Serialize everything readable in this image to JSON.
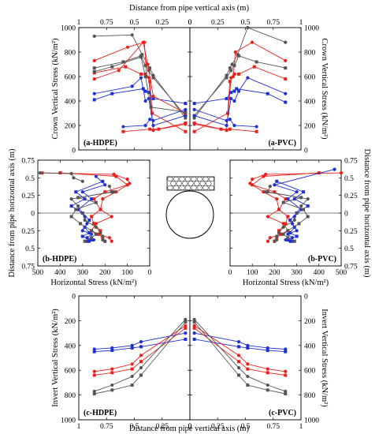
{
  "figure": {
    "top_xlabel": "Distance from pipe vertical axis (m)",
    "bottom_xlabel": "Distance from pipe vertical axis (m)",
    "left_ylabel": "Distance from pipe horizontal axis (m)",
    "right_ylabel": "Distance from pipe horizontal axis (m)"
  },
  "colors": {
    "gray": "#555555",
    "red": "#e8211c",
    "blue": "#1f2fd6"
  },
  "chart_data": [
    {
      "id": "crown-hdpe",
      "type": "line",
      "panel_label": "(a-HDPE)",
      "ylabel": "Crown Vertical Stress (kN/m²)",
      "x_reversed": true,
      "xlim": [
        0,
        1
      ],
      "ylim": [
        0,
        1000
      ],
      "x_ticks": [
        "1",
        "0.75",
        "0.5",
        "0.25",
        "0"
      ],
      "y_ticks": [
        "0",
        "200",
        "400",
        "600",
        "800",
        "1000"
      ],
      "series": [
        {
          "color": "gray",
          "x": [
            0.86,
            0.52,
            0.43,
            0.38,
            0.36,
            0.33,
            0.04
          ],
          "y": [
            930,
            940,
            780,
            700,
            670,
            610,
            260
          ]
        },
        {
          "color": "gray",
          "x": [
            0.86,
            0.6,
            0.44,
            0.4,
            0.37,
            0.33,
            0.04
          ],
          "y": [
            670,
            720,
            770,
            690,
            650,
            590,
            280
          ]
        },
        {
          "color": "red",
          "x": [
            0.86,
            0.56,
            0.41,
            0.39,
            0.37,
            0.33,
            0.04
          ],
          "y": [
            730,
            840,
            880,
            600,
            590,
            160,
            210
          ]
        },
        {
          "color": "red",
          "x": [
            0.86,
            0.58,
            0.44,
            0.4,
            0.36,
            0.34,
            0.04
          ],
          "y": [
            630,
            680,
            620,
            620,
            560,
            300,
            150
          ]
        },
        {
          "color": "blue",
          "x": [
            0.86,
            0.52,
            0.44,
            0.4,
            0.37,
            0.33,
            0.04
          ],
          "y": [
            460,
            520,
            590,
            400,
            420,
            200,
            280
          ]
        },
        {
          "color": "blue",
          "x": [
            0.86,
            0.7,
            0.42,
            0.4,
            0.37,
            0.33,
            0.04
          ],
          "y": [
            410,
            460,
            500,
            480,
            470,
            420,
            380
          ]
        },
        {
          "color": "red",
          "x": [
            0.86,
            0.64,
            0.42,
            0.38,
            0.33,
            0.04
          ],
          "y": [
            580,
            650,
            880,
            700,
            440,
            300
          ]
        },
        {
          "color": "gray",
          "x": [
            0.86,
            0.7,
            0.44,
            0.4,
            0.35,
            0.04
          ],
          "y": [
            640,
            680,
            760,
            600,
            350,
            310
          ]
        },
        {
          "color": "blue",
          "x": [
            0.6,
            0.4,
            0.36,
            0.33,
            0.04
          ],
          "y": [
            190,
            200,
            250,
            240,
            330
          ]
        },
        {
          "color": "red",
          "x": [
            0.6,
            0.36,
            0.28,
            0.04
          ],
          "y": [
            150,
            170,
            170,
            220
          ]
        }
      ]
    },
    {
      "id": "crown-pvc",
      "type": "line",
      "panel_label": "(a-PVC)",
      "ylabel": "Crown Vertical Stress (kN/m²)",
      "xlim": [
        0,
        1
      ],
      "ylim": [
        0,
        1000
      ],
      "x_ticks": [
        "0",
        "0.25",
        "0.5",
        "0.75",
        "1"
      ],
      "y_ticks": [
        "0",
        "200",
        "400",
        "600",
        "800",
        "1000"
      ],
      "series": [
        {
          "color": "gray",
          "x": [
            0.04,
            0.33,
            0.36,
            0.38,
            0.43,
            0.52,
            0.86
          ],
          "y": [
            260,
            610,
            670,
            700,
            780,
            1000,
            880
          ]
        },
        {
          "color": "gray",
          "x": [
            0.04,
            0.33,
            0.37,
            0.4,
            0.44,
            0.6,
            0.86
          ],
          "y": [
            280,
            590,
            650,
            690,
            770,
            720,
            670
          ]
        },
        {
          "color": "red",
          "x": [
            0.04,
            0.33,
            0.37,
            0.39,
            0.41,
            0.56,
            0.86
          ],
          "y": [
            210,
            160,
            590,
            600,
            800,
            880,
            730
          ]
        },
        {
          "color": "red",
          "x": [
            0.04,
            0.34,
            0.36,
            0.4,
            0.44,
            0.58,
            0.86
          ],
          "y": [
            150,
            300,
            560,
            620,
            620,
            680,
            580
          ]
        },
        {
          "color": "blue",
          "x": [
            0.04,
            0.33,
            0.37,
            0.4,
            0.44,
            0.52,
            0.86
          ],
          "y": [
            280,
            200,
            420,
            400,
            480,
            590,
            460
          ]
        },
        {
          "color": "blue",
          "x": [
            0.04,
            0.33,
            0.37,
            0.4,
            0.42,
            0.7,
            0.86
          ],
          "y": [
            380,
            420,
            470,
            480,
            500,
            460,
            390
          ]
        },
        {
          "color": "blue",
          "x": [
            0.04,
            0.33,
            0.36,
            0.4,
            0.6
          ],
          "y": [
            330,
            240,
            250,
            200,
            190
          ]
        },
        {
          "color": "red",
          "x": [
            0.04,
            0.28,
            0.36,
            0.6
          ],
          "y": [
            220,
            170,
            170,
            150
          ]
        }
      ]
    },
    {
      "id": "horizontal-hdpe",
      "type": "line",
      "panel_label": "(b-HDPE)",
      "xlabel": "Horizontal Stress (kN/m²)",
      "x_reversed": true,
      "xlim": [
        0,
        500
      ],
      "ylim": [
        -0.75,
        0.75
      ],
      "x_ticks": [
        "500",
        "400",
        "300",
        "200",
        "100",
        "0"
      ],
      "y_ticks": [
        "0.75",
        "0.5",
        "0.25",
        "0",
        "0.25",
        "0.5",
        "0.75"
      ],
      "series": [
        {
          "color": "red",
          "x": [
            480,
            160,
            100,
            90,
            150,
            210,
            220,
            170,
            240,
            260,
            230,
            180,
            170
          ],
          "y": [
            0.57,
            0.55,
            0.48,
            0.42,
            0.3,
            0.2,
            0.05,
            -0.05,
            -0.15,
            -0.25,
            -0.3,
            -0.35,
            -0.4
          ]
        },
        {
          "color": "red",
          "x": [
            400,
            150,
            100,
            200,
            250,
            220,
            260,
            250,
            220,
            230,
            210,
            200
          ],
          "y": [
            0.57,
            0.52,
            0.4,
            0.3,
            0.2,
            0.05,
            -0.05,
            -0.15,
            -0.25,
            -0.3,
            -0.35,
            -0.4
          ]
        },
        {
          "color": "blue",
          "x": [
            240,
            200,
            300,
            260,
            320,
            290,
            280,
            300,
            260,
            280,
            250,
            270
          ],
          "y": [
            0.52,
            0.4,
            0.3,
            0.2,
            0.05,
            -0.05,
            -0.15,
            -0.25,
            -0.3,
            -0.35,
            -0.38,
            -0.4
          ]
        },
        {
          "color": "blue",
          "x": [
            210,
            330,
            290,
            350,
            300,
            270,
            290,
            270,
            300,
            260,
            280
          ],
          "y": [
            0.45,
            0.3,
            0.2,
            0.1,
            0.0,
            -0.1,
            -0.2,
            -0.28,
            -0.33,
            -0.38,
            -0.4
          ]
        },
        {
          "color": "gray",
          "x": [
            180,
            170,
            350,
            320,
            300,
            290,
            240,
            220,
            210,
            210,
            200
          ],
          "y": [
            0.38,
            0.3,
            0.2,
            0.1,
            0.0,
            -0.1,
            -0.2,
            -0.28,
            -0.33,
            -0.38,
            -0.4
          ]
        },
        {
          "color": "gray",
          "x": [
            160,
            320,
            240,
            330,
            350,
            310,
            260,
            240,
            260,
            290
          ],
          "y": [
            0.3,
            0.22,
            0.15,
            0.05,
            -0.05,
            -0.15,
            -0.25,
            -0.3,
            -0.35,
            -0.4
          ]
        },
        {
          "color": "gray",
          "x": [
            490,
            350,
            340,
            300
          ],
          "y": [
            0.57,
            0.56,
            0.5,
            0.45
          ]
        }
      ]
    },
    {
      "id": "horizontal-pvc",
      "type": "line",
      "panel_label": "(b-PVC)",
      "xlabel": "Horizontal Stress (kN/m²)",
      "xlim": [
        0,
        500
      ],
      "ylim": [
        -0.75,
        0.75
      ],
      "x_ticks": [
        "0",
        "100",
        "200",
        "300",
        "400",
        "500"
      ],
      "y_ticks": [
        "0.75",
        "0.5",
        "0.25",
        "0",
        "0.25",
        "0.5",
        "0.75"
      ],
      "series": [
        {
          "color": "red",
          "x": [
            500,
            160,
            100,
            90,
            150,
            210,
            220,
            170,
            240,
            260,
            230,
            180,
            170
          ],
          "y": [
            0.57,
            0.55,
            0.48,
            0.42,
            0.3,
            0.2,
            0.05,
            -0.05,
            -0.15,
            -0.25,
            -0.3,
            -0.35,
            -0.4
          ]
        },
        {
          "color": "red",
          "x": [
            400,
            150,
            100,
            200,
            250,
            220,
            260,
            250,
            220,
            230,
            210,
            200
          ],
          "y": [
            0.57,
            0.52,
            0.4,
            0.3,
            0.2,
            0.05,
            -0.05,
            -0.15,
            -0.25,
            -0.3,
            -0.35,
            -0.4
          ]
        },
        {
          "color": "blue",
          "x": [
            470,
            200,
            300,
            260,
            320,
            290,
            280,
            300,
            260,
            280,
            250,
            270
          ],
          "y": [
            0.62,
            0.4,
            0.3,
            0.2,
            0.05,
            -0.05,
            -0.15,
            -0.25,
            -0.3,
            -0.35,
            -0.38,
            -0.4
          ]
        },
        {
          "color": "blue",
          "x": [
            210,
            330,
            290,
            350,
            300,
            270,
            290,
            270,
            300,
            260,
            280
          ],
          "y": [
            0.45,
            0.3,
            0.2,
            0.1,
            0.0,
            -0.1,
            -0.2,
            -0.28,
            -0.33,
            -0.38,
            -0.4
          ]
        },
        {
          "color": "gray",
          "x": [
            180,
            170,
            350,
            320,
            300,
            290,
            240,
            220,
            210,
            210,
            200
          ],
          "y": [
            0.38,
            0.3,
            0.2,
            0.1,
            0.0,
            -0.1,
            -0.2,
            -0.28,
            -0.33,
            -0.38,
            -0.4
          ]
        },
        {
          "color": "gray",
          "x": [
            160,
            320,
            240,
            330,
            350,
            310,
            260,
            240,
            260,
            290
          ],
          "y": [
            0.3,
            0.22,
            0.15,
            0.05,
            -0.05,
            -0.15,
            -0.25,
            -0.3,
            -0.35,
            -0.4
          ]
        }
      ]
    },
    {
      "id": "invert-hdpe",
      "type": "line",
      "panel_label": "(c-HDPE)",
      "ylabel": "Invert Vertical Stress (kN/m²)",
      "x_reversed": true,
      "y_reversed": true,
      "xlim": [
        0,
        1
      ],
      "ylim": [
        0,
        1000
      ],
      "x_ticks": [
        "1",
        "0.75",
        "0.5",
        "0.25",
        "0"
      ],
      "y_ticks": [
        "0",
        "200",
        "400",
        "600",
        "800",
        "1000"
      ],
      "series": [
        {
          "color": "blue",
          "x": [
            0.86,
            0.7,
            0.52,
            0.44,
            0.04
          ],
          "y": [
            430,
            420,
            400,
            370,
            300
          ]
        },
        {
          "color": "blue",
          "x": [
            0.86,
            0.7,
            0.52,
            0.44,
            0.04
          ],
          "y": [
            450,
            440,
            420,
            410,
            350
          ]
        },
        {
          "color": "red",
          "x": [
            0.86,
            0.7,
            0.52,
            0.44,
            0.04
          ],
          "y": [
            610,
            590,
            550,
            480,
            240
          ]
        },
        {
          "color": "red",
          "x": [
            0.86,
            0.7,
            0.52,
            0.44,
            0.04
          ],
          "y": [
            640,
            620,
            590,
            530,
            260
          ]
        },
        {
          "color": "gray",
          "x": [
            0.86,
            0.7,
            0.52,
            0.44,
            0.04
          ],
          "y": [
            770,
            720,
            650,
            580,
            190
          ]
        },
        {
          "color": "gray",
          "x": [
            0.86,
            0.7,
            0.52,
            0.44,
            0.04
          ],
          "y": [
            790,
            760,
            720,
            640,
            210
          ]
        }
      ]
    },
    {
      "id": "invert-pvc",
      "type": "line",
      "panel_label": "(c-PVC)",
      "ylabel": "Invert Vertical Stress (kN/m²)",
      "y_reversed": true,
      "xlim": [
        0,
        1
      ],
      "ylim": [
        0,
        1000
      ],
      "x_ticks": [
        "0",
        "0.25",
        "0.5",
        "0.75",
        "1"
      ],
      "y_ticks": [
        "0",
        "200",
        "400",
        "600",
        "800",
        "1000"
      ],
      "series": [
        {
          "color": "blue",
          "x": [
            0.04,
            0.44,
            0.52,
            0.7,
            0.86
          ],
          "y": [
            300,
            370,
            400,
            420,
            430
          ]
        },
        {
          "color": "blue",
          "x": [
            0.04,
            0.44,
            0.52,
            0.7,
            0.86
          ],
          "y": [
            350,
            410,
            420,
            440,
            450
          ]
        },
        {
          "color": "red",
          "x": [
            0.04,
            0.44,
            0.52,
            0.7,
            0.86
          ],
          "y": [
            240,
            480,
            550,
            590,
            610
          ]
        },
        {
          "color": "red",
          "x": [
            0.04,
            0.44,
            0.52,
            0.7,
            0.86
          ],
          "y": [
            260,
            530,
            590,
            620,
            640
          ]
        },
        {
          "color": "gray",
          "x": [
            0.04,
            0.44,
            0.52,
            0.7,
            0.86
          ],
          "y": [
            190,
            580,
            650,
            720,
            770
          ]
        },
        {
          "color": "gray",
          "x": [
            0.04,
            0.44,
            0.52,
            0.7,
            0.86
          ],
          "y": [
            210,
            640,
            720,
            760,
            790
          ]
        }
      ]
    }
  ]
}
